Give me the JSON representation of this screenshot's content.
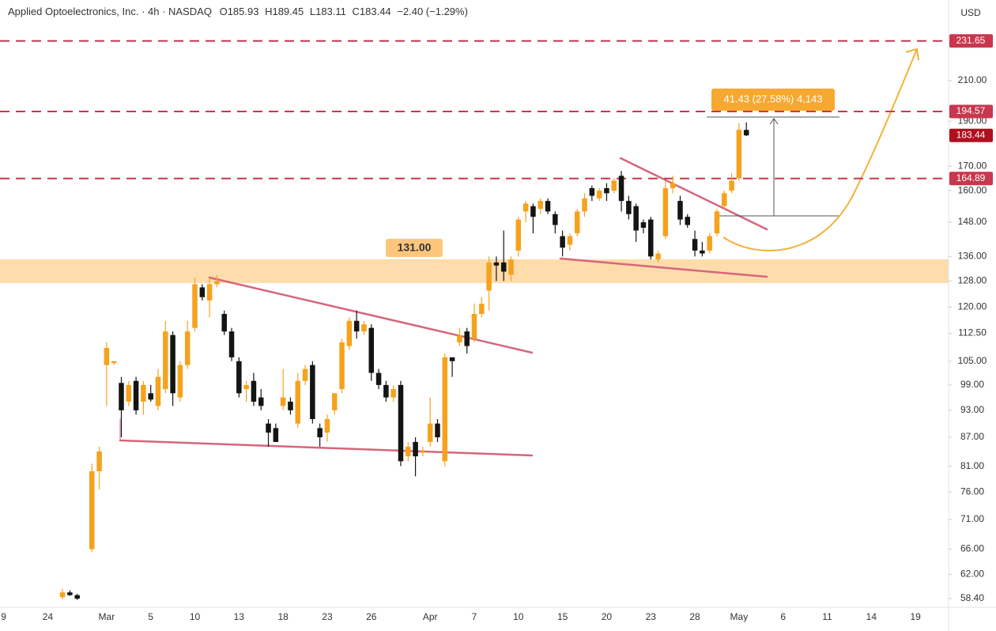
{
  "chart_data": {
    "type": "candlestick",
    "title": "Applied Optoelectronics, Inc. · 4h · NASDAQ",
    "ohlc_texts": [
      "O185.93",
      "H189.45",
      "L183.11",
      "C183.44"
    ],
    "change": "−2.40 (−1.29%)",
    "currency": "USD",
    "log_scale": true,
    "up_color": "#f5a21e",
    "down_color": "#141414",
    "ylim": [
      57.16,
      256.3
    ],
    "yticks": [
      {
        "value": 58.4,
        "label": "58.40"
      },
      {
        "value": 62,
        "label": "62.00"
      },
      {
        "value": 66,
        "label": "66.00"
      },
      {
        "value": 71,
        "label": "71.00"
      },
      {
        "value": 76,
        "label": "76.00"
      },
      {
        "value": 81,
        "label": "81.00"
      },
      {
        "value": 87,
        "label": "87.00"
      },
      {
        "value": 93,
        "label": "93.00"
      },
      {
        "value": 99,
        "label": "99.00"
      },
      {
        "value": 105,
        "label": "105.00"
      },
      {
        "value": 112.5,
        "label": "112.50"
      },
      {
        "value": 120,
        "label": "120.00"
      },
      {
        "value": 128,
        "label": "128.00"
      },
      {
        "value": 136,
        "label": "136.00"
      },
      {
        "value": 148,
        "label": "148.00"
      },
      {
        "value": 160,
        "label": "160.00"
      },
      {
        "value": 170,
        "label": "170.00"
      },
      {
        "value": 190,
        "label": "190.00"
      },
      {
        "value": 210,
        "label": "210.00"
      }
    ],
    "levels": [
      231.65,
      194.57,
      164.89
    ],
    "level_color": "#c8374e",
    "zone_label": "131.00",
    "measure_label": "41.43 (27.58%) 4,143",
    "categories": [
      "9",
      null,
      null,
      null,
      null,
      null,
      "24",
      null,
      null,
      null,
      null,
      null,
      null,
      null,
      "Mar",
      null,
      null,
      null,
      null,
      null,
      "5",
      null,
      null,
      null,
      null,
      null,
      "10",
      null,
      null,
      null,
      null,
      null,
      "13",
      null,
      null,
      null,
      null,
      null,
      "18",
      null,
      null,
      null,
      null,
      null,
      "23",
      null,
      null,
      null,
      null,
      null,
      "26",
      null,
      null,
      null,
      null,
      null,
      null,
      null,
      "Apr",
      null,
      null,
      null,
      null,
      null,
      "7",
      null,
      null,
      null,
      null,
      null,
      "10",
      null,
      null,
      null,
      null,
      null,
      "15",
      null,
      null,
      null,
      null,
      null,
      "20",
      null,
      null,
      null,
      null,
      null,
      "23",
      null,
      null,
      null,
      null,
      null,
      "28",
      null,
      null,
      null,
      null,
      null,
      "May",
      null,
      null,
      null,
      null,
      null,
      "6",
      null,
      null,
      null,
      null,
      null,
      "11",
      null,
      null,
      null,
      null,
      null,
      "14",
      null,
      null,
      null,
      null,
      null,
      "19",
      null,
      null,
      null,
      null
    ],
    "open": [
      null,
      null,
      null,
      null,
      null,
      null,
      null,
      null,
      58.6,
      59.3,
      58.9,
      null,
      66,
      80,
      104,
      104.5,
      99.5,
      95,
      100,
      95,
      97,
      94,
      98,
      112,
      96,
      104,
      114,
      126,
      122,
      127,
      118,
      113,
      105,
      98,
      100,
      96,
      90,
      89,
      94,
      95,
      90,
      100,
      104,
      89,
      88,
      93,
      98,
      109,
      116,
      113,
      114,
      102,
      99,
      96,
      99,
      83,
      86,
      84,
      86,
      90,
      82,
      106,
      110,
      113,
      111,
      118,
      125,
      134,
      134,
      130,
      138,
      152,
      154,
      153,
      156,
      151,
      143,
      140,
      144,
      152,
      161,
      157,
      161,
      160,
      166,
      156,
      154,
      148,
      149,
      135,
      143,
      161,
      156,
      150,
      142,
      138,
      138,
      144,
      154,
      160,
      165,
      185.93,
      null,
      null,
      null,
      null,
      null,
      null,
      null,
      null,
      null,
      null,
      null,
      null,
      null,
      null,
      null,
      null,
      null,
      null,
      null,
      null,
      null,
      null,
      null,
      null,
      null,
      null,
      null
    ],
    "high": [
      null,
      null,
      null,
      null,
      null,
      null,
      null,
      null,
      59.8,
      59.6,
      59.1,
      null,
      81.5,
      85,
      110,
      105,
      101,
      100,
      101,
      100,
      99,
      103,
      116,
      113,
      105,
      116,
      129,
      127,
      129,
      130,
      119,
      114,
      106,
      100,
      102,
      98,
      91,
      90,
      103,
      96,
      102,
      104,
      105,
      90,
      92,
      97,
      111,
      117,
      119,
      116,
      115,
      103,
      100,
      99,
      100,
      86,
      87,
      85,
      96,
      91,
      107,
      106,
      114,
      114,
      121,
      123,
      136,
      136,
      145,
      136,
      150,
      156,
      155,
      157,
      157,
      152,
      145,
      144,
      153,
      159,
      162,
      161,
      163,
      165,
      168,
      158,
      155,
      149,
      150,
      138,
      164,
      166,
      158,
      151,
      145,
      141,
      144,
      153,
      160,
      167,
      189,
      189.45,
      null,
      null,
      null,
      null,
      null,
      null,
      null,
      null,
      null,
      null,
      null,
      null,
      null,
      null,
      null,
      null,
      null,
      null,
      null,
      null,
      null,
      null,
      null,
      null,
      null,
      null,
      null
    ],
    "low": [
      null,
      null,
      null,
      null,
      null,
      null,
      null,
      null,
      58.3,
      58.8,
      58.2,
      null,
      65.5,
      76.5,
      94,
      104,
      87,
      94,
      92,
      92,
      95,
      93,
      97,
      94,
      95,
      103,
      113,
      122,
      117,
      126,
      112,
      105,
      96,
      95,
      94,
      93,
      85,
      86,
      93,
      92,
      89,
      99,
      90,
      85,
      86,
      92,
      97,
      108,
      111,
      112,
      100,
      98,
      95,
      95,
      81,
      82,
      79,
      83,
      85,
      86,
      81,
      101,
      109,
      107,
      110,
      117,
      119,
      128,
      128,
      128,
      136,
      148,
      144,
      151,
      151,
      144,
      136,
      138,
      143,
      150,
      156,
      156,
      156,
      159,
      152,
      149,
      141,
      144,
      135,
      134,
      142,
      159,
      147,
      146,
      136,
      136,
      137,
      143,
      153,
      159,
      164,
      183.11,
      null,
      null,
      null,
      null,
      null,
      null,
      null,
      null,
      null,
      null,
      null,
      null,
      null,
      null,
      null,
      null,
      null,
      null,
      null,
      null,
      null,
      null,
      null,
      null,
      null,
      null,
      null
    ],
    "close": [
      null,
      null,
      null,
      null,
      null,
      null,
      null,
      null,
      59.3,
      58.9,
      58.4,
      null,
      80,
      84,
      108.5,
      105,
      93,
      99,
      93,
      99,
      95.5,
      101,
      113,
      97,
      104,
      113,
      127,
      123,
      127,
      128,
      113,
      106,
      97,
      99,
      95,
      94,
      88,
      86,
      96,
      93,
      100,
      103,
      91,
      87,
      91,
      97,
      110,
      116,
      113,
      115,
      102,
      99,
      96,
      98,
      82,
      85,
      83,
      84,
      90,
      87,
      106,
      105,
      112,
      109,
      118,
      121,
      134,
      133,
      131,
      135,
      149,
      155,
      150,
      156,
      152,
      147,
      139,
      143,
      152,
      157,
      158,
      160,
      159,
      164,
      156,
      151,
      145,
      146,
      136,
      137,
      161,
      163,
      149,
      147,
      138,
      137,
      143,
      152,
      159,
      164,
      186,
      183.44,
      null,
      null,
      null,
      null,
      null,
      null,
      null,
      null,
      null,
      null,
      null,
      null,
      null,
      null,
      null,
      null,
      null,
      null,
      null,
      null,
      null,
      null,
      null,
      null,
      null,
      null,
      null
    ]
  }
}
